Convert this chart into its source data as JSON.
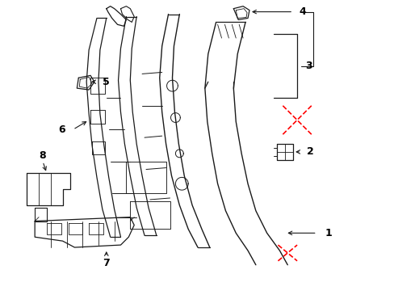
{
  "bg_color": "#ffffff",
  "line_color": "#1a1a1a",
  "red_color": "#ff0000",
  "label_color": "#000000",
  "fig_w": 4.89,
  "fig_h": 3.6,
  "dpi": 100
}
